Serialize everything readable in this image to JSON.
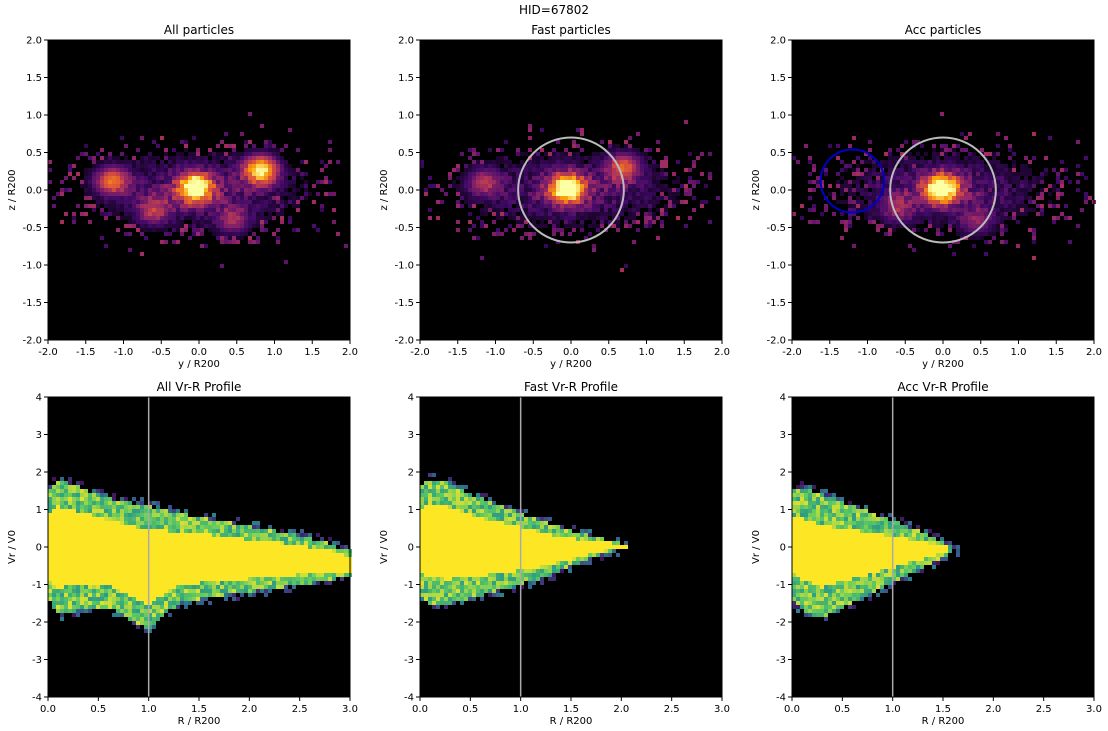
{
  "figure": {
    "suptitle": "HID=67802"
  },
  "chart_data": [
    {
      "type": "heatmap",
      "title": "All particles",
      "xlabel": "y / R200",
      "ylabel": "z / R200",
      "xlim": [
        -2.0,
        2.0
      ],
      "ylim": [
        -2.0,
        2.0
      ],
      "xticks": [
        "-2.0",
        "-1.5",
        "-1.0",
        "-0.5",
        "0.0",
        "0.5",
        "1.0",
        "1.5",
        "2.0"
      ],
      "yticks": [
        "-2.0",
        "-1.5",
        "-1.0",
        "-0.5",
        "0.0",
        "0.5",
        "1.0",
        "1.5",
        "2.0"
      ],
      "colormap": "inferno",
      "background": "#000000",
      "density_peaks": [
        {
          "x": -0.05,
          "y": 0.03,
          "peak": 1.0
        },
        {
          "x": 0.82,
          "y": 0.27,
          "peak": 0.9
        },
        {
          "x": -1.15,
          "y": 0.12,
          "peak": 0.6
        },
        {
          "x": -0.6,
          "y": -0.28,
          "peak": 0.4
        },
        {
          "x": 0.45,
          "y": -0.4,
          "peak": 0.35
        }
      ],
      "grid": false
    },
    {
      "type": "heatmap",
      "title": "Fast particles",
      "xlabel": "y / R200",
      "ylabel": "z / R200",
      "xlim": [
        -2.0,
        2.0
      ],
      "ylim": [
        -2.0,
        2.0
      ],
      "xticks": [
        "-2.0",
        "-1.5",
        "-1.0",
        "-0.5",
        "0.0",
        "0.5",
        "1.0",
        "1.5",
        "2.0"
      ],
      "yticks": [
        "-2.0",
        "-1.5",
        "-1.0",
        "-0.5",
        "0.0",
        "0.5",
        "1.0",
        "1.5",
        "2.0"
      ],
      "colormap": "inferno",
      "background": "#000000",
      "density_peaks": [
        {
          "x": -0.05,
          "y": 0.02,
          "peak": 1.0
        },
        {
          "x": 0.7,
          "y": 0.3,
          "peak": 0.55
        },
        {
          "x": -1.15,
          "y": 0.1,
          "peak": 0.4
        }
      ],
      "circles": [
        {
          "cx": 0.0,
          "cy": 0.0,
          "r": 0.7,
          "color": "#bbbbbb"
        }
      ],
      "grid": false
    },
    {
      "type": "heatmap",
      "title": "Acc particles",
      "xlabel": "y / R200",
      "ylabel": "z / R200",
      "xlim": [
        -2.0,
        2.0
      ],
      "ylim": [
        -2.0,
        2.0
      ],
      "xticks": [
        "-2.0",
        "-1.5",
        "-1.0",
        "-0.5",
        "0.0",
        "0.5",
        "1.0",
        "1.5",
        "2.0"
      ],
      "yticks": [
        "-2.0",
        "-1.5",
        "-1.0",
        "-0.5",
        "0.0",
        "0.5",
        "1.0",
        "1.5",
        "2.0"
      ],
      "colormap": "inferno",
      "background": "#000000",
      "density_peaks": [
        {
          "x": -0.02,
          "y": 0.02,
          "peak": 1.0
        },
        {
          "x": 0.45,
          "y": -0.42,
          "peak": 0.3
        },
        {
          "x": -0.6,
          "y": -0.25,
          "peak": 0.3
        }
      ],
      "circles": [
        {
          "cx": 0.0,
          "cy": 0.0,
          "r": 0.7,
          "color": "#bbbbbb"
        },
        {
          "cx": -1.2,
          "cy": 0.12,
          "r": 0.42,
          "color": "#0000cc"
        }
      ],
      "grid": false
    },
    {
      "type": "heatmap",
      "title": "All Vr-R Profile",
      "xlabel": "R / R200",
      "ylabel": "Vr / V0",
      "xlim": [
        0.0,
        3.0
      ],
      "ylim": [
        -4,
        4
      ],
      "xticks": [
        "0.0",
        "0.5",
        "1.0",
        "1.5",
        "2.0",
        "2.5",
        "3.0"
      ],
      "yticks": [
        "-4",
        "-3",
        "-2",
        "-1",
        "0",
        "1",
        "2",
        "3",
        "4"
      ],
      "colormap": "viridis",
      "background": "#000000",
      "vline": {
        "x": 1.0,
        "color": "#aaaaaa"
      },
      "envelope": {
        "r": [
          0.0,
          0.1,
          0.3,
          0.6,
          1.0,
          1.3,
          1.7,
          2.0,
          2.5,
          2.8,
          2.95
        ],
        "upper": [
          1.5,
          1.8,
          1.6,
          1.3,
          1.1,
          0.9,
          0.7,
          0.55,
          0.3,
          0.1,
          -0.1
        ],
        "lower": [
          -1.4,
          -1.8,
          -1.7,
          -1.6,
          -2.2,
          -1.5,
          -1.3,
          -1.2,
          -1.0,
          -0.9,
          -0.8
        ],
        "core_fraction": 0.6
      },
      "grid": false
    },
    {
      "type": "heatmap",
      "title": "Fast Vr-R Profile",
      "xlabel": "R / R200",
      "ylabel": "Vr / V0",
      "xlim": [
        0.0,
        3.0
      ],
      "ylim": [
        -4,
        4
      ],
      "xticks": [
        "0.0",
        "0.5",
        "1.0",
        "1.5",
        "2.0",
        "2.5",
        "3.0"
      ],
      "yticks": [
        "-4",
        "-3",
        "-2",
        "-1",
        "0",
        "1",
        "2",
        "3",
        "4"
      ],
      "colormap": "viridis",
      "background": "#000000",
      "vline": {
        "x": 1.0,
        "color": "#aaaaaa"
      },
      "envelope": {
        "r": [
          0.0,
          0.1,
          0.3,
          0.6,
          1.0,
          1.3,
          1.6,
          1.85,
          2.0
        ],
        "upper": [
          1.6,
          1.8,
          1.7,
          1.3,
          0.9,
          0.6,
          0.35,
          0.2,
          0.1
        ],
        "lower": [
          -1.3,
          -1.5,
          -1.5,
          -1.3,
          -1.0,
          -0.75,
          -0.4,
          -0.15,
          -0.05
        ],
        "core_fraction": 0.6
      },
      "grid": false
    },
    {
      "type": "heatmap",
      "title": "Acc Vr-R Profile",
      "xlabel": "R / R200",
      "ylabel": "Vr / V0",
      "xlim": [
        0.0,
        3.0
      ],
      "ylim": [
        -4,
        4
      ],
      "xticks": [
        "0.0",
        "0.5",
        "1.0",
        "1.5",
        "2.0",
        "2.5",
        "3.0"
      ],
      "yticks": [
        "-4",
        "-3",
        "-2",
        "-1",
        "0",
        "1",
        "2",
        "3",
        "4"
      ],
      "colormap": "viridis",
      "background": "#000000",
      "vline": {
        "x": 1.0,
        "color": "#aaaaaa"
      },
      "envelope": {
        "r": [
          0.0,
          0.1,
          0.3,
          0.6,
          0.9,
          1.2,
          1.45,
          1.6
        ],
        "upper": [
          1.5,
          1.6,
          1.4,
          1.1,
          0.8,
          0.5,
          0.2,
          0.0
        ],
        "lower": [
          -1.4,
          -1.7,
          -1.9,
          -1.5,
          -1.1,
          -0.7,
          -0.35,
          -0.1
        ],
        "core_fraction": 0.5
      },
      "grid": false
    }
  ]
}
